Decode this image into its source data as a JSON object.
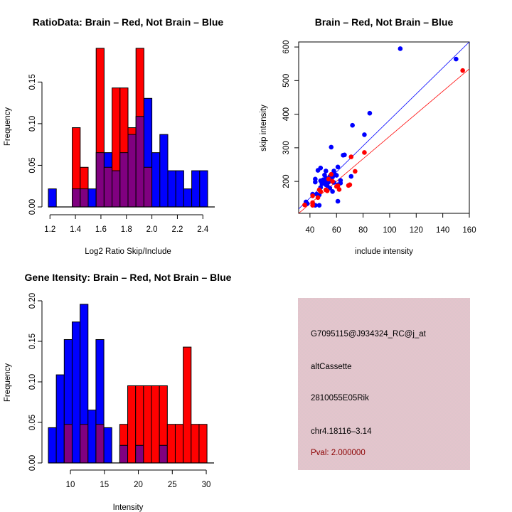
{
  "chart_data": [
    {
      "id": "ratio-hist",
      "type": "bar",
      "title": "RatioData: Brain – Red, Not Brain – Blue",
      "xlabel": "Log2 Ratio Skip/Include",
      "ylabel": "Frequency",
      "bin_start": 1.1875,
      "bin_width": 0.0625,
      "xlim": [
        1.1875,
        2.4375
      ],
      "ylim": [
        0,
        0.19
      ],
      "xticks": [
        1.2,
        1.4,
        1.6,
        1.8,
        2.0,
        2.2,
        2.4
      ],
      "xtick_labels": [
        "1.2",
        "1.4",
        "1.6",
        "1.8",
        "2.0",
        "2.2",
        "2.4"
      ],
      "yticks": [
        0.0,
        0.05,
        0.1,
        0.15
      ],
      "ytick_labels": [
        "0.00",
        "0.05",
        "0.10",
        "0.15"
      ],
      "overlap_color": "#800080",
      "series": [
        {
          "name": "Not Brain",
          "color": "#0000ff",
          "values": [
            0.0217,
            0,
            0,
            0.0217,
            0.0217,
            0.0217,
            0.0652,
            0.0652,
            0.0435,
            0.0652,
            0.087,
            0.1087,
            0.1304,
            0.0652,
            0.087,
            0.0435,
            0.0435,
            0.0217,
            0.0435,
            0.0435
          ]
        },
        {
          "name": "Brain",
          "color": "#ff0000",
          "values": [
            0,
            0,
            0,
            0.0952,
            0.0476,
            0,
            0.1905,
            0.0476,
            0.1429,
            0.1429,
            0.0952,
            0.1905,
            0.0476,
            0,
            0,
            0,
            0,
            0,
            0,
            0
          ]
        }
      ]
    },
    {
      "id": "intensity-scatter",
      "type": "scatter",
      "title": "Brain – Red, Not Brain – Blue",
      "xlabel": "include intensity",
      "ylabel": "skip intensity",
      "xlim": [
        31.5,
        160
      ],
      "ylim": [
        105,
        615
      ],
      "xticks": [
        40,
        60,
        80,
        100,
        120,
        140,
        160
      ],
      "xtick_labels": [
        "40",
        "60",
        "80",
        "100",
        "120",
        "140",
        "160"
      ],
      "yticks": [
        200,
        300,
        400,
        500,
        600
      ],
      "ytick_labels": [
        "200",
        "300",
        "400",
        "500",
        "600"
      ],
      "series": [
        {
          "name": "Not Brain",
          "color": "#0000ff",
          "points": [
            [
              108,
              595
            ],
            [
              150,
              564
            ],
            [
              85,
              403
            ],
            [
              72,
              367
            ],
            [
              81,
              339
            ],
            [
              56,
              302
            ],
            [
              65,
              278
            ],
            [
              66,
              279
            ],
            [
              61,
              243
            ],
            [
              48,
              240
            ],
            [
              46,
              233
            ],
            [
              52,
              231
            ],
            [
              58,
              231
            ],
            [
              44,
              207
            ],
            [
              44,
              198
            ],
            [
              59,
              220
            ],
            [
              51,
              219
            ],
            [
              71,
              215
            ],
            [
              57,
              213
            ],
            [
              52,
              210
            ],
            [
              56,
              207
            ],
            [
              63,
              203
            ],
            [
              48,
              202
            ],
            [
              50,
              199
            ],
            [
              52,
              198
            ],
            [
              54,
              198
            ],
            [
              63,
              195
            ],
            [
              58,
              197
            ],
            [
              52,
              190
            ],
            [
              61,
              190
            ],
            [
              48,
              182
            ],
            [
              55,
              180
            ],
            [
              57,
              170
            ],
            [
              42,
              162
            ],
            [
              45,
              162
            ],
            [
              47,
              160
            ],
            [
              61,
              141
            ],
            [
              37,
              139
            ],
            [
              38,
              134
            ],
            [
              44,
              129
            ],
            [
              47,
              129
            ],
            [
              50,
              205
            ],
            [
              53,
              188
            ],
            [
              60,
              218
            ],
            [
              49,
              193
            ],
            [
              55,
              215
            ]
          ],
          "fit_line": [
            [
              31.5,
              118
            ],
            [
              160,
              615
            ]
          ]
        },
        {
          "name": "Brain",
          "color": "#ff0000",
          "points": [
            [
              155,
              530
            ],
            [
              81,
              286
            ],
            [
              71,
              273
            ],
            [
              74,
              230
            ],
            [
              56,
              221
            ],
            [
              54,
              207
            ],
            [
              70,
              190
            ],
            [
              69,
              188
            ],
            [
              61,
              187
            ],
            [
              62,
              176
            ],
            [
              52,
              175
            ],
            [
              47,
              175
            ],
            [
              42,
              157
            ],
            [
              36,
              130
            ],
            [
              42,
              137
            ],
            [
              42,
              129
            ],
            [
              60,
              185
            ],
            [
              48,
              170
            ],
            [
              53,
              172
            ],
            [
              57,
              200
            ],
            [
              46,
              152
            ]
          ],
          "fit_line": [
            [
              31.5,
              105
            ],
            [
              160,
              535
            ]
          ]
        }
      ]
    },
    {
      "id": "gene-hist",
      "type": "bar",
      "title": "Gene Itensity: Brain – Red, Not Brain – Blue",
      "xlabel": "Intensity",
      "ylabel": "Frequency",
      "bin_start": 6.75,
      "bin_width": 1.168,
      "xlim": [
        6.75,
        30.1
      ],
      "ylim": [
        0,
        0.2
      ],
      "xticks": [
        10,
        15,
        20,
        25,
        30
      ],
      "xtick_labels": [
        "10",
        "15",
        "20",
        "25",
        "30"
      ],
      "yticks": [
        0.0,
        0.05,
        0.1,
        0.15,
        0.2
      ],
      "ytick_labels": [
        "0.00",
        "0.05",
        "0.10",
        "0.15",
        "0.20"
      ],
      "overlap_color": "#800080",
      "series": [
        {
          "name": "Not Brain",
          "color": "#0000ff",
          "values": [
            0.0435,
            0.1087,
            0.1522,
            0.1739,
            0.1957,
            0.0652,
            0.1522,
            0.0435,
            0,
            0.0217,
            0,
            0.0217,
            0,
            0,
            0.0217,
            0,
            0,
            0,
            0,
            0
          ]
        },
        {
          "name": "Brain",
          "color": "#ff0000",
          "values": [
            0,
            0,
            0.0476,
            0,
            0.0476,
            0,
            0.0476,
            0,
            0,
            0.0476,
            0.0952,
            0.0952,
            0.0952,
            0.0952,
            0.0952,
            0.0476,
            0.0476,
            0.1429,
            0.0476,
            0.0476
          ]
        }
      ]
    }
  ],
  "info_panel": {
    "probe_id": "G7095115@J934324_RC@j_at",
    "event_type": "altCassette",
    "gene_name": "2810055E05Rik",
    "location": "chr4.18116–3.14",
    "pval": "Pval: 2.000000",
    "pval_color": "#8b0000"
  }
}
